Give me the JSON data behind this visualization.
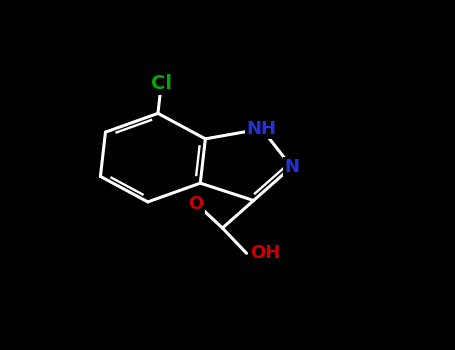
{
  "background_color": "#000000",
  "bond_color_white": "#ffffff",
  "bond_width": 2.2,
  "atom_colors": {
    "N": "#2233dd",
    "O": "#cc0000",
    "Cl": "#00aa00"
  },
  "font_size": 13,
  "fig_bg": "#000000",
  "xlim": [
    0,
    10
  ],
  "ylim": [
    0,
    10
  ]
}
